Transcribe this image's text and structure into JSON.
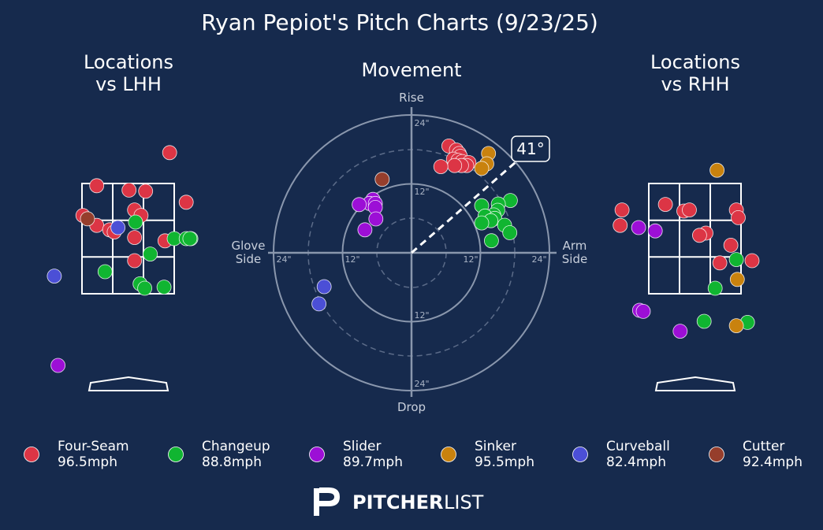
{
  "title": "Ryan Pepiot's Pitch Charts (9/23/25)",
  "panels": {
    "left_title": [
      "Locations",
      "vs LHH"
    ],
    "center_title": "Movement",
    "right_title": [
      "Locations",
      "vs RHH"
    ]
  },
  "movement_labels": {
    "top": "Rise",
    "bottom": "Drop",
    "left": [
      "Glove",
      "Side"
    ],
    "right": [
      "Arm",
      "Side"
    ],
    "angle": "41°",
    "ring_12": "12\"",
    "ring_24": "24\""
  },
  "brand": {
    "logo_letter": "P",
    "name_bold": "PITCHER",
    "name_light": "LIST"
  },
  "colors": {
    "background": "#162a4d",
    "Four-Seam": "#dc3545",
    "Changeup": "#10b531",
    "Slider": "#9c0fd6",
    "Sinker": "#c9820e",
    "Curveball": "#4b4fd6",
    "Cutter": "#963e2c"
  },
  "legend": [
    {
      "pitch": "Four-Seam",
      "velo": "96.5mph"
    },
    {
      "pitch": "Changeup",
      "velo": "88.8mph"
    },
    {
      "pitch": "Slider",
      "velo": "89.7mph"
    },
    {
      "pitch": "Sinker",
      "velo": "95.5mph"
    },
    {
      "pitch": "Curveball",
      "velo": "82.4mph"
    },
    {
      "pitch": "Cutter",
      "velo": "92.4mph"
    }
  ],
  "chart_data": [
    {
      "type": "scatter",
      "title": "Locations vs LHH",
      "xlabel": "",
      "ylabel": "",
      "units": "strike-zone widths; zone spans x -0.5..0.5, y 0..1",
      "series": [
        {
          "name": "Four-Seam",
          "points": [
            [
              0.45,
              1.28
            ],
            [
              -0.34,
              0.98
            ],
            [
              0.01,
              0.94
            ],
            [
              0.19,
              0.93
            ],
            [
              0.63,
              0.83
            ],
            [
              0.07,
              0.76
            ],
            [
              0.14,
              0.71
            ],
            [
              -0.49,
              0.71
            ],
            [
              -0.34,
              0.62
            ],
            [
              -0.2,
              0.58
            ],
            [
              -0.15,
              0.56
            ],
            [
              0.07,
              0.51
            ],
            [
              0.4,
              0.48
            ],
            [
              0.07,
              0.3
            ]
          ]
        },
        {
          "name": "Changeup",
          "points": [
            [
              0.08,
              0.65
            ],
            [
              0.5,
              0.5
            ],
            [
              0.63,
              0.5
            ],
            [
              0.68,
              0.5
            ],
            [
              0.67,
              0.5
            ],
            [
              0.24,
              0.36
            ],
            [
              -0.25,
              0.2
            ],
            [
              0.13,
              0.09
            ],
            [
              0.18,
              0.05
            ],
            [
              0.39,
              0.06
            ]
          ]
        },
        {
          "name": "Slider",
          "points": [
            [
              -0.76,
              -0.65
            ]
          ]
        },
        {
          "name": "Sinker",
          "points": []
        },
        {
          "name": "Curveball",
          "points": [
            [
              -0.11,
              0.6
            ],
            [
              -0.8,
              0.16
            ]
          ]
        },
        {
          "name": "Cutter",
          "points": [
            [
              -0.44,
              0.68
            ]
          ]
        }
      ]
    },
    {
      "type": "scatter",
      "title": "Movement",
      "xlabel": "",
      "ylabel": "",
      "units": "inches; +x arm side, +y rise",
      "arm_angle_deg": 41,
      "rings": [
        12,
        24
      ],
      "series": [
        {
          "name": "Four-Seam",
          "points": [
            [
              6.5,
              18.6
            ],
            [
              7.8,
              17.9
            ],
            [
              8.3,
              17.3
            ],
            [
              8.5,
              16.8
            ],
            [
              7.3,
              16.3
            ],
            [
              8.1,
              16.1
            ],
            [
              8.8,
              15.9
            ],
            [
              10,
              15.7
            ],
            [
              9.6,
              15.2
            ],
            [
              8.7,
              15.2
            ],
            [
              7.5,
              15.2
            ],
            [
              5.1,
              15
            ]
          ]
        },
        {
          "name": "Changeup",
          "points": [
            [
              17.2,
              9.1
            ],
            [
              15.1,
              8.5
            ],
            [
              12.2,
              8.2
            ],
            [
              15,
              7.4
            ],
            [
              14.3,
              6.6
            ],
            [
              12.8,
              6.4
            ],
            [
              14.5,
              6
            ],
            [
              13.8,
              5.6
            ],
            [
              16.2,
              4.8
            ],
            [
              12.2,
              5.2
            ],
            [
              17.1,
              3.5
            ],
            [
              13.9,
              2.1
            ]
          ]
        },
        {
          "name": "Slider",
          "points": [
            [
              -6.7,
              9.3
            ],
            [
              -7.3,
              8.6
            ],
            [
              -6.3,
              8.6
            ],
            [
              -9.1,
              8.4
            ],
            [
              -6.3,
              7.9
            ],
            [
              -6.2,
              5.9
            ],
            [
              -8.1,
              4
            ]
          ]
        },
        {
          "name": "Sinker",
          "points": [
            [
              13.4,
              17.3
            ],
            [
              13.1,
              15.5
            ],
            [
              12.2,
              14.7
            ]
          ]
        },
        {
          "name": "Curveball",
          "points": [
            [
              -15.2,
              -5.9
            ],
            [
              -16.1,
              -8.9
            ]
          ]
        },
        {
          "name": "Cutter",
          "points": [
            [
              -5.1,
              12.8
            ]
          ]
        }
      ]
    },
    {
      "type": "scatter",
      "title": "Locations vs RHH",
      "xlabel": "",
      "ylabel": "",
      "units": "strike-zone widths; zone spans x -0.5..0.5, y 0..1",
      "series": [
        {
          "name": "Four-Seam",
          "points": [
            [
              -0.32,
              0.81
            ],
            [
              -0.79,
              0.76
            ],
            [
              -0.12,
              0.75
            ],
            [
              -0.06,
              0.76
            ],
            [
              0.45,
              0.76
            ],
            [
              0.47,
              0.69
            ],
            [
              -0.81,
              0.62
            ],
            [
              0.12,
              0.55
            ],
            [
              0.05,
              0.53
            ],
            [
              0.39,
              0.44
            ],
            [
              0.27,
              0.28
            ],
            [
              0.62,
              0.3
            ]
          ]
        },
        {
          "name": "Changeup",
          "points": [
            [
              0.45,
              0.31
            ],
            [
              0.22,
              0.05
            ],
            [
              0.1,
              -0.25
            ],
            [
              0.57,
              -0.26
            ]
          ]
        },
        {
          "name": "Slider",
          "points": [
            [
              -1.02,
              -0.04
            ],
            [
              -0.91,
              -0.04
            ],
            [
              -0.61,
              0.6
            ],
            [
              -0.43,
              0.57
            ],
            [
              -0.6,
              -0.15
            ],
            [
              -0.56,
              -0.16
            ],
            [
              -0.16,
              -0.34
            ]
          ]
        },
        {
          "name": "Sinker",
          "points": [
            [
              0.24,
              1.12
            ],
            [
              0.46,
              0.13
            ],
            [
              0.45,
              -0.29
            ]
          ]
        },
        {
          "name": "Curveball",
          "points": []
        },
        {
          "name": "Cutter",
          "points": []
        }
      ]
    }
  ]
}
